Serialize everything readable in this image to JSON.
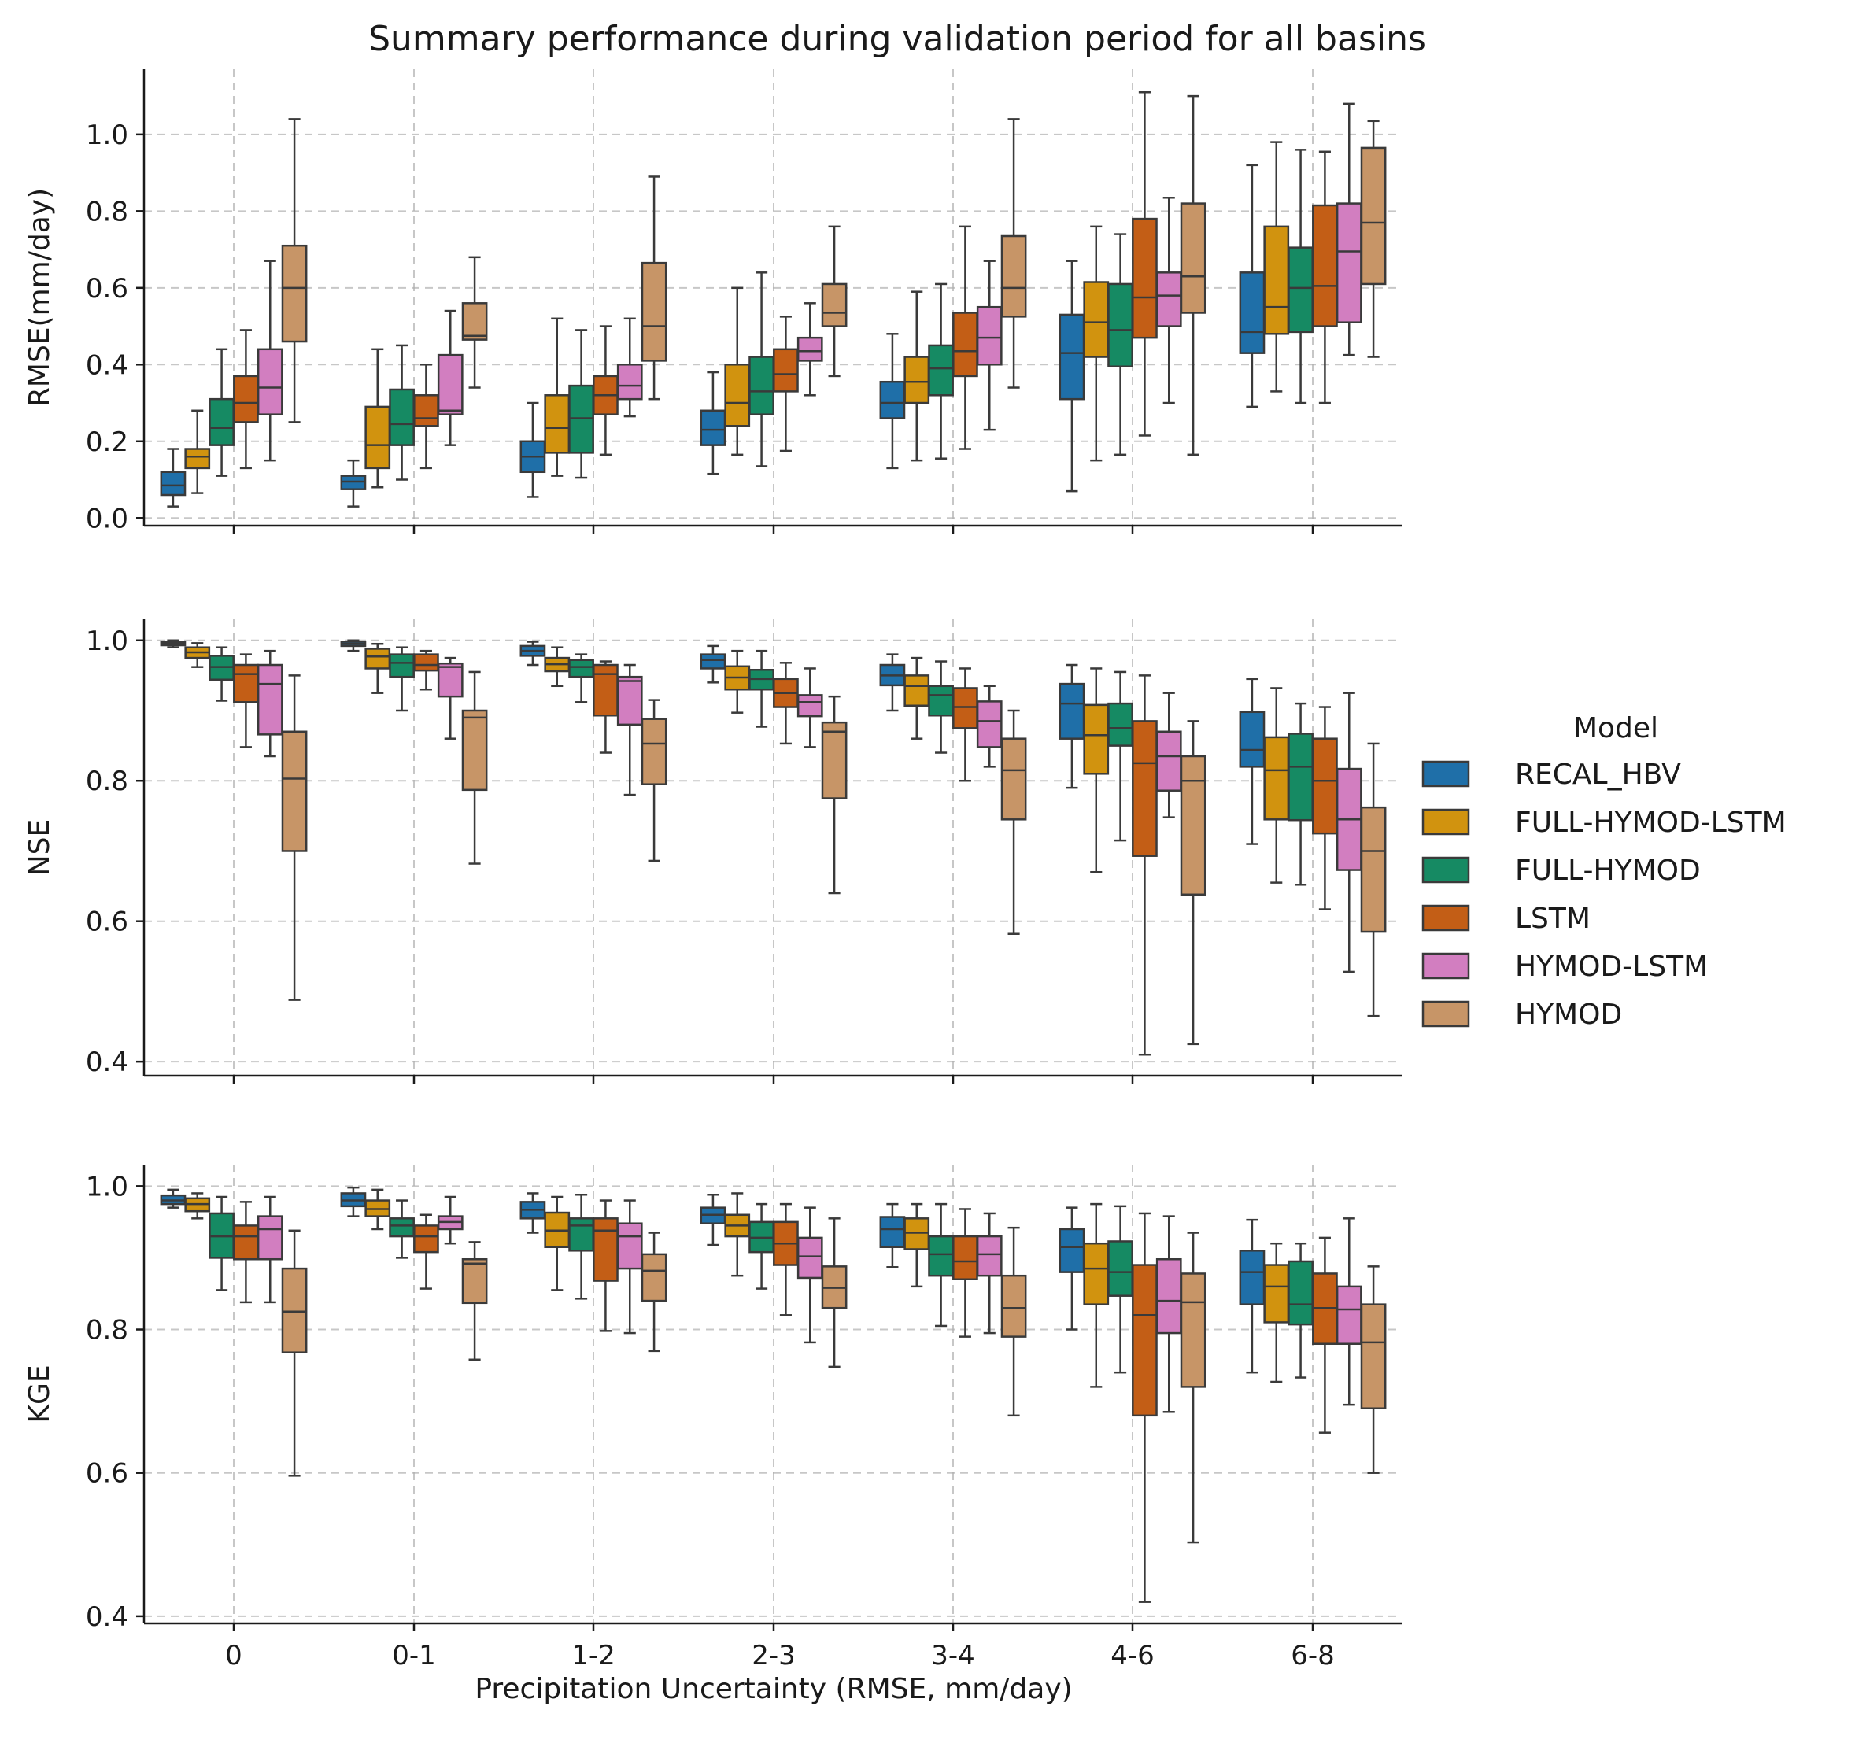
{
  "chart_data": {
    "type": "boxplot",
    "title": "Summary performance during validation period for all basins",
    "xlabel": "Precipitation Uncertainty (RMSE, mm/day)",
    "categories": [
      "0",
      "0-1",
      "1-2",
      "2-3",
      "3-4",
      "4-6",
      "6-8"
    ],
    "legend": {
      "title": "Model",
      "placement": "right",
      "entries": [
        {
          "name": "RECAL_HBV",
          "color": "#1f6fa8"
        },
        {
          "name": "FULL-HYMOD-LSTM",
          "color": "#d1930f"
        },
        {
          "name": "FULL-HYMOD",
          "color": "#168a63"
        },
        {
          "name": "LSTM",
          "color": "#c35e16"
        },
        {
          "name": "HYMOD-LSTM",
          "color": "#d27ec0"
        },
        {
          "name": "HYMOD",
          "color": "#c79567"
        }
      ]
    },
    "grid": true,
    "panels": [
      {
        "ylabel": "RMSE(mm/day)",
        "ylim": [
          -0.02,
          1.17
        ],
        "yticks": [
          0.0,
          0.2,
          0.4,
          0.6,
          0.8,
          1.0
        ],
        "yticklabels": [
          "0.0",
          "0.2",
          "0.4",
          "0.6",
          "0.8",
          "1.0"
        ],
        "boxes": [
          [
            [
              0.03,
              0.06,
              0.085,
              0.12,
              0.18
            ],
            [
              0.065,
              0.13,
              0.16,
              0.18,
              0.28
            ],
            [
              0.11,
              0.19,
              0.235,
              0.31,
              0.44
            ],
            [
              0.13,
              0.25,
              0.3,
              0.37,
              0.49
            ],
            [
              0.15,
              0.27,
              0.34,
              0.44,
              0.67
            ],
            [
              0.25,
              0.46,
              0.6,
              0.71,
              1.04
            ]
          ],
          [
            [
              0.03,
              0.075,
              0.095,
              0.11,
              0.15
            ],
            [
              0.08,
              0.13,
              0.19,
              0.29,
              0.44
            ],
            [
              0.1,
              0.19,
              0.245,
              0.335,
              0.45
            ],
            [
              0.13,
              0.24,
              0.26,
              0.32,
              0.4
            ],
            [
              0.19,
              0.27,
              0.28,
              0.425,
              0.54
            ],
            [
              0.34,
              0.465,
              0.475,
              0.56,
              0.68
            ]
          ],
          [
            [
              0.055,
              0.12,
              0.16,
              0.2,
              0.3
            ],
            [
              0.11,
              0.17,
              0.235,
              0.32,
              0.52
            ],
            [
              0.105,
              0.17,
              0.26,
              0.345,
              0.49
            ],
            [
              0.165,
              0.27,
              0.32,
              0.37,
              0.5
            ],
            [
              0.265,
              0.31,
              0.345,
              0.4,
              0.52
            ],
            [
              0.31,
              0.41,
              0.5,
              0.665,
              0.89
            ]
          ],
          [
            [
              0.115,
              0.19,
              0.23,
              0.28,
              0.38
            ],
            [
              0.165,
              0.24,
              0.3,
              0.4,
              0.6
            ],
            [
              0.135,
              0.27,
              0.33,
              0.42,
              0.64
            ],
            [
              0.175,
              0.33,
              0.375,
              0.44,
              0.525
            ],
            [
              0.32,
              0.41,
              0.435,
              0.47,
              0.56
            ],
            [
              0.37,
              0.5,
              0.535,
              0.61,
              0.76
            ]
          ],
          [
            [
              0.13,
              0.26,
              0.3,
              0.355,
              0.48
            ],
            [
              0.15,
              0.3,
              0.355,
              0.42,
              0.59
            ],
            [
              0.155,
              0.32,
              0.39,
              0.45,
              0.61
            ],
            [
              0.18,
              0.37,
              0.435,
              0.535,
              0.76
            ],
            [
              0.23,
              0.4,
              0.47,
              0.55,
              0.67
            ],
            [
              0.34,
              0.525,
              0.6,
              0.735,
              1.04
            ]
          ],
          [
            [
              0.07,
              0.31,
              0.43,
              0.53,
              0.67
            ],
            [
              0.15,
              0.42,
              0.51,
              0.615,
              0.76
            ],
            [
              0.165,
              0.395,
              0.49,
              0.61,
              0.74
            ],
            [
              0.215,
              0.47,
              0.575,
              0.78,
              1.11
            ],
            [
              0.3,
              0.5,
              0.58,
              0.64,
              0.835
            ],
            [
              0.165,
              0.535,
              0.63,
              0.82,
              1.1
            ]
          ],
          [
            [
              0.29,
              0.43,
              0.485,
              0.64,
              0.92
            ],
            [
              0.33,
              0.48,
              0.55,
              0.76,
              0.98
            ],
            [
              0.3,
              0.485,
              0.6,
              0.705,
              0.96
            ],
            [
              0.3,
              0.5,
              0.605,
              0.815,
              0.955
            ],
            [
              0.425,
              0.51,
              0.695,
              0.82,
              1.08
            ],
            [
              0.42,
              0.61,
              0.77,
              0.965,
              1.035
            ]
          ]
        ]
      },
      {
        "ylabel": "NSE",
        "ylim": [
          0.38,
          1.03
        ],
        "yticks": [
          0.4,
          0.6,
          0.8,
          1.0
        ],
        "yticklabels": [
          "0.4",
          "0.6",
          "0.8",
          "1.0"
        ],
        "boxes": [
          [
            [
              0.99,
              0.993,
              0.996,
              0.998,
              1.0
            ],
            [
              0.962,
              0.975,
              0.983,
              0.99,
              0.996
            ],
            [
              0.914,
              0.944,
              0.962,
              0.978,
              0.99
            ],
            [
              0.848,
              0.912,
              0.952,
              0.965,
              0.98
            ],
            [
              0.835,
              0.866,
              0.938,
              0.965,
              0.985
            ],
            [
              0.488,
              0.7,
              0.803,
              0.87,
              0.95
            ]
          ],
          [
            [
              0.985,
              0.992,
              0.995,
              0.998,
              1.0
            ],
            [
              0.925,
              0.96,
              0.977,
              0.988,
              0.995
            ],
            [
              0.9,
              0.948,
              0.968,
              0.98,
              0.99
            ],
            [
              0.93,
              0.957,
              0.965,
              0.98,
              0.985
            ],
            [
              0.86,
              0.92,
              0.962,
              0.967,
              0.975
            ],
            [
              0.682,
              0.787,
              0.89,
              0.9,
              0.955
            ]
          ],
          [
            [
              0.965,
              0.978,
              0.985,
              0.992,
              0.998
            ],
            [
              0.935,
              0.956,
              0.966,
              0.975,
              0.99
            ],
            [
              0.912,
              0.948,
              0.962,
              0.972,
              0.98
            ],
            [
              0.84,
              0.893,
              0.952,
              0.965,
              0.97
            ],
            [
              0.78,
              0.88,
              0.942,
              0.948,
              0.965
            ],
            [
              0.686,
              0.795,
              0.853,
              0.888,
              0.915
            ]
          ],
          [
            [
              0.94,
              0.96,
              0.972,
              0.98,
              0.992
            ],
            [
              0.897,
              0.93,
              0.947,
              0.963,
              0.985
            ],
            [
              0.877,
              0.93,
              0.945,
              0.958,
              0.985
            ],
            [
              0.853,
              0.905,
              0.925,
              0.945,
              0.968
            ],
            [
              0.848,
              0.892,
              0.912,
              0.922,
              0.96
            ],
            [
              0.64,
              0.775,
              0.87,
              0.883,
              0.92
            ]
          ],
          [
            [
              0.9,
              0.936,
              0.95,
              0.965,
              0.98
            ],
            [
              0.86,
              0.907,
              0.935,
              0.95,
              0.975
            ],
            [
              0.84,
              0.893,
              0.922,
              0.935,
              0.97
            ],
            [
              0.8,
              0.875,
              0.905,
              0.932,
              0.96
            ],
            [
              0.82,
              0.848,
              0.885,
              0.913,
              0.935
            ],
            [
              0.582,
              0.745,
              0.815,
              0.86,
              0.9
            ]
          ],
          [
            [
              0.79,
              0.86,
              0.91,
              0.938,
              0.965
            ],
            [
              0.67,
              0.81,
              0.865,
              0.908,
              0.96
            ],
            [
              0.715,
              0.85,
              0.875,
              0.91,
              0.955
            ],
            [
              0.41,
              0.693,
              0.825,
              0.885,
              0.95
            ],
            [
              0.748,
              0.786,
              0.835,
              0.87,
              0.925
            ],
            [
              0.425,
              0.638,
              0.8,
              0.835,
              0.885
            ]
          ],
          [
            [
              0.71,
              0.82,
              0.844,
              0.898,
              0.945
            ],
            [
              0.655,
              0.745,
              0.815,
              0.862,
              0.932
            ],
            [
              0.652,
              0.744,
              0.82,
              0.867,
              0.91
            ],
            [
              0.617,
              0.725,
              0.8,
              0.86,
              0.905
            ],
            [
              0.528,
              0.673,
              0.745,
              0.817,
              0.925
            ],
            [
              0.465,
              0.585,
              0.7,
              0.762,
              0.853
            ]
          ]
        ]
      },
      {
        "ylabel": "KGE",
        "ylim": [
          0.39,
          1.03
        ],
        "yticks": [
          0.4,
          0.6,
          0.8,
          1.0
        ],
        "yticklabels": [
          "0.4",
          "0.6",
          "0.8",
          "1.0"
        ],
        "boxes": [
          [
            [
              0.97,
              0.975,
              0.98,
              0.987,
              0.995
            ],
            [
              0.955,
              0.965,
              0.975,
              0.983,
              0.99
            ],
            [
              0.855,
              0.9,
              0.93,
              0.962,
              0.985
            ],
            [
              0.838,
              0.898,
              0.93,
              0.945,
              0.978
            ],
            [
              0.838,
              0.898,
              0.94,
              0.958,
              0.985
            ],
            [
              0.596,
              0.768,
              0.825,
              0.885,
              0.938
            ]
          ],
          [
            [
              0.958,
              0.972,
              0.98,
              0.99,
              0.998
            ],
            [
              0.94,
              0.958,
              0.968,
              0.98,
              0.995
            ],
            [
              0.9,
              0.93,
              0.945,
              0.955,
              0.98
            ],
            [
              0.857,
              0.908,
              0.93,
              0.945,
              0.96
            ],
            [
              0.92,
              0.94,
              0.95,
              0.958,
              0.985
            ],
            [
              0.758,
              0.837,
              0.892,
              0.898,
              0.922
            ]
          ],
          [
            [
              0.935,
              0.955,
              0.967,
              0.978,
              0.99
            ],
            [
              0.855,
              0.915,
              0.938,
              0.963,
              0.985
            ],
            [
              0.843,
              0.91,
              0.945,
              0.955,
              0.988
            ],
            [
              0.798,
              0.868,
              0.938,
              0.955,
              0.98
            ],
            [
              0.795,
              0.885,
              0.93,
              0.948,
              0.98
            ],
            [
              0.77,
              0.84,
              0.882,
              0.905,
              0.935
            ]
          ],
          [
            [
              0.918,
              0.948,
              0.96,
              0.97,
              0.988
            ],
            [
              0.875,
              0.93,
              0.945,
              0.96,
              0.99
            ],
            [
              0.857,
              0.908,
              0.928,
              0.95,
              0.975
            ],
            [
              0.82,
              0.89,
              0.92,
              0.95,
              0.975
            ],
            [
              0.782,
              0.872,
              0.902,
              0.928,
              0.97
            ],
            [
              0.748,
              0.83,
              0.858,
              0.888,
              0.955
            ]
          ],
          [
            [
              0.887,
              0.915,
              0.94,
              0.957,
              0.975
            ],
            [
              0.86,
              0.912,
              0.935,
              0.955,
              0.975
            ],
            [
              0.805,
              0.875,
              0.905,
              0.93,
              0.975
            ],
            [
              0.79,
              0.87,
              0.895,
              0.93,
              0.968
            ],
            [
              0.795,
              0.875,
              0.905,
              0.93,
              0.962
            ],
            [
              0.68,
              0.79,
              0.83,
              0.875,
              0.942
            ]
          ],
          [
            [
              0.8,
              0.88,
              0.915,
              0.94,
              0.97
            ],
            [
              0.72,
              0.835,
              0.885,
              0.92,
              0.975
            ],
            [
              0.74,
              0.847,
              0.88,
              0.923,
              0.972
            ],
            [
              0.42,
              0.68,
              0.82,
              0.89,
              0.962
            ],
            [
              0.685,
              0.795,
              0.84,
              0.898,
              0.958
            ],
            [
              0.503,
              0.72,
              0.838,
              0.878,
              0.935
            ]
          ],
          [
            [
              0.74,
              0.835,
              0.88,
              0.91,
              0.953
            ],
            [
              0.727,
              0.81,
              0.86,
              0.89,
              0.92
            ],
            [
              0.733,
              0.807,
              0.835,
              0.895,
              0.92
            ],
            [
              0.656,
              0.78,
              0.83,
              0.878,
              0.928
            ],
            [
              0.695,
              0.78,
              0.828,
              0.86,
              0.955
            ],
            [
              0.6,
              0.69,
              0.782,
              0.835,
              0.888
            ]
          ]
        ]
      }
    ]
  }
}
